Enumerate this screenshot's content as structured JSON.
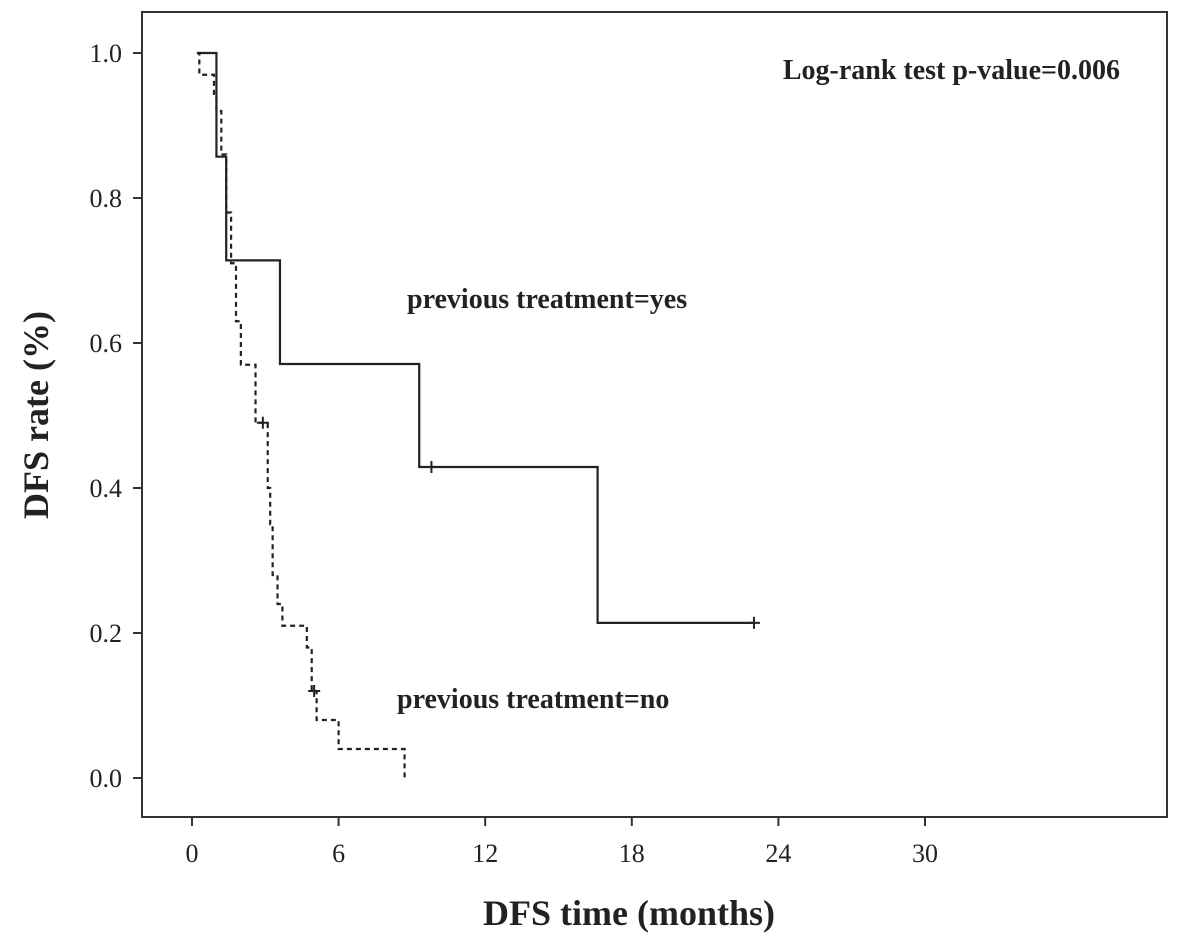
{
  "chart_data": {
    "type": "line",
    "subtype": "kaplan-meier-step",
    "title": "",
    "xlabel": "DFS time (months)",
    "ylabel": "DFS rate (%)",
    "xlim": [
      0,
      30
    ],
    "ylim": [
      0,
      1.0
    ],
    "xticks": [
      "0",
      "6",
      "12",
      "18",
      "24",
      "30"
    ],
    "yticks": [
      "0.0",
      "0.2",
      "0.4",
      "0.6",
      "0.8",
      "1.0"
    ],
    "grid": false,
    "annotations": [
      {
        "text": "Log-rank test p-value=0.006"
      }
    ],
    "series": [
      {
        "name": "previous treatment=yes",
        "line_style": "solid",
        "color": "#222222",
        "steps": [
          [
            0.2,
            1.0
          ],
          [
            1.0,
            0.857
          ],
          [
            1.4,
            0.714
          ],
          [
            3.6,
            0.571
          ],
          [
            9.3,
            0.429
          ],
          [
            16.6,
            0.214
          ],
          [
            23.0,
            0.214
          ]
        ],
        "censored": [
          [
            9.8,
            0.429
          ],
          [
            23.0,
            0.214
          ]
        ]
      },
      {
        "name": "previous treatment=no",
        "line_style": "dashed",
        "color": "#222222",
        "steps": [
          [
            0.2,
            1.0
          ],
          [
            0.3,
            0.97
          ],
          [
            0.9,
            0.94
          ],
          [
            1.0,
            0.92
          ],
          [
            1.2,
            0.86
          ],
          [
            1.4,
            0.78
          ],
          [
            1.6,
            0.71
          ],
          [
            1.8,
            0.63
          ],
          [
            2.0,
            0.57
          ],
          [
            2.6,
            0.49
          ],
          [
            3.1,
            0.4
          ],
          [
            3.2,
            0.35
          ],
          [
            3.3,
            0.28
          ],
          [
            3.5,
            0.24
          ],
          [
            3.7,
            0.21
          ],
          [
            4.7,
            0.18
          ],
          [
            4.9,
            0.12
          ],
          [
            5.1,
            0.08
          ],
          [
            6.0,
            0.04
          ],
          [
            8.7,
            0.0
          ]
        ],
        "censored": [
          [
            2.9,
            0.49
          ],
          [
            5.0,
            0.12
          ]
        ]
      }
    ]
  }
}
